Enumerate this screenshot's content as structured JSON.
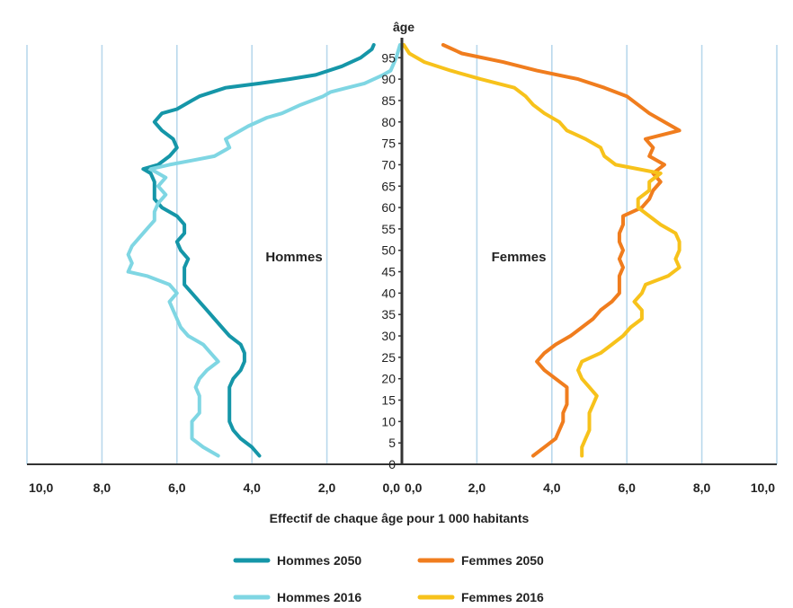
{
  "chart_data": {
    "type": "line",
    "layout": "population-pyramid",
    "title": "",
    "y_axis_title": "âge",
    "x_axis_title": "Effectif de chaque âge pour 1 000 habitants",
    "x_ticks_left": [
      "10,0",
      "8,0",
      "6,0",
      "4,0",
      "2,0",
      "0,0"
    ],
    "x_ticks_right": [
      "0,0",
      "2,0",
      "4,0",
      "6,0",
      "8,0",
      "10,0"
    ],
    "xlim": [
      0,
      10
    ],
    "ylim": [
      0,
      98
    ],
    "y_ticks": [
      0,
      5,
      10,
      15,
      20,
      25,
      30,
      35,
      40,
      45,
      50,
      55,
      60,
      65,
      70,
      75,
      80,
      85,
      90,
      95
    ],
    "grid": "vertical",
    "side_labels": {
      "left": "Hommes",
      "right": "Femmes"
    },
    "colors": {
      "hommes_2050": "#1596a8",
      "hommes_2016": "#7fd6e3",
      "femmes_2050": "#f07d1e",
      "femmes_2016": "#f7c21b",
      "grid": "#b9d8ec",
      "axis": "#333333"
    },
    "series": [
      {
        "name": "Hommes 2050",
        "side": "left",
        "color": "#1596a8",
        "points": [
          [
            3.8,
            2
          ],
          [
            4.0,
            4
          ],
          [
            4.3,
            6
          ],
          [
            4.5,
            8
          ],
          [
            4.6,
            10
          ],
          [
            4.6,
            12
          ],
          [
            4.6,
            14
          ],
          [
            4.6,
            16
          ],
          [
            4.6,
            18
          ],
          [
            4.5,
            20
          ],
          [
            4.3,
            22
          ],
          [
            4.2,
            24
          ],
          [
            4.2,
            26
          ],
          [
            4.3,
            28
          ],
          [
            4.6,
            30
          ],
          [
            4.8,
            32
          ],
          [
            5.0,
            34
          ],
          [
            5.2,
            36
          ],
          [
            5.4,
            38
          ],
          [
            5.6,
            40
          ],
          [
            5.8,
            42
          ],
          [
            5.8,
            44
          ],
          [
            5.8,
            46
          ],
          [
            5.7,
            48
          ],
          [
            5.9,
            50
          ],
          [
            6.0,
            52
          ],
          [
            5.8,
            54
          ],
          [
            5.8,
            56
          ],
          [
            6.0,
            58
          ],
          [
            6.4,
            60
          ],
          [
            6.6,
            62
          ],
          [
            6.6,
            64
          ],
          [
            6.6,
            66
          ],
          [
            6.7,
            68
          ],
          [
            6.9,
            69
          ],
          [
            6.5,
            70
          ],
          [
            6.2,
            72
          ],
          [
            6.0,
            74
          ],
          [
            6.1,
            76
          ],
          [
            6.4,
            78
          ],
          [
            6.6,
            80
          ],
          [
            6.4,
            82
          ],
          [
            6.0,
            83
          ],
          [
            5.6,
            85
          ],
          [
            5.4,
            86
          ],
          [
            4.7,
            88
          ],
          [
            3.8,
            89
          ],
          [
            3.0,
            90
          ],
          [
            2.3,
            91
          ],
          [
            1.6,
            93
          ],
          [
            1.1,
            95
          ],
          [
            0.8,
            97
          ],
          [
            0.75,
            98
          ]
        ]
      },
      {
        "name": "Hommes 2016",
        "side": "left",
        "color": "#7fd6e3",
        "points": [
          [
            4.9,
            2
          ],
          [
            5.3,
            4
          ],
          [
            5.6,
            6
          ],
          [
            5.6,
            8
          ],
          [
            5.6,
            10
          ],
          [
            5.4,
            12
          ],
          [
            5.4,
            14
          ],
          [
            5.4,
            16
          ],
          [
            5.5,
            18
          ],
          [
            5.4,
            20
          ],
          [
            5.2,
            22
          ],
          [
            4.9,
            24
          ],
          [
            5.1,
            26
          ],
          [
            5.3,
            28
          ],
          [
            5.7,
            30
          ],
          [
            5.9,
            32
          ],
          [
            6.0,
            34
          ],
          [
            6.1,
            36
          ],
          [
            6.2,
            38
          ],
          [
            6.0,
            40
          ],
          [
            6.2,
            42
          ],
          [
            6.8,
            44
          ],
          [
            7.3,
            45
          ],
          [
            7.2,
            47
          ],
          [
            7.3,
            49
          ],
          [
            7.2,
            51
          ],
          [
            7.0,
            53
          ],
          [
            6.8,
            55
          ],
          [
            6.6,
            57
          ],
          [
            6.6,
            59
          ],
          [
            6.5,
            61
          ],
          [
            6.3,
            63
          ],
          [
            6.5,
            65
          ],
          [
            6.3,
            67
          ],
          [
            6.7,
            69
          ],
          [
            6.2,
            70
          ],
          [
            5.6,
            71
          ],
          [
            5.0,
            72
          ],
          [
            4.6,
            74
          ],
          [
            4.7,
            76
          ],
          [
            4.1,
            79
          ],
          [
            3.6,
            81
          ],
          [
            3.2,
            82
          ],
          [
            2.7,
            84
          ],
          [
            2.1,
            86
          ],
          [
            1.9,
            87
          ],
          [
            1.0,
            89
          ],
          [
            0.5,
            91
          ],
          [
            0.3,
            92
          ],
          [
            0.15,
            95
          ],
          [
            0.05,
            98
          ]
        ]
      },
      {
        "name": "Femmes 2050",
        "side": "right",
        "color": "#f07d1e",
        "points": [
          [
            3.5,
            2
          ],
          [
            3.8,
            4
          ],
          [
            4.1,
            6
          ],
          [
            4.2,
            8
          ],
          [
            4.3,
            10
          ],
          [
            4.3,
            12
          ],
          [
            4.4,
            14
          ],
          [
            4.4,
            16
          ],
          [
            4.4,
            18
          ],
          [
            4.1,
            20
          ],
          [
            3.8,
            22
          ],
          [
            3.6,
            24
          ],
          [
            3.8,
            26
          ],
          [
            4.1,
            28
          ],
          [
            4.5,
            30
          ],
          [
            4.8,
            32
          ],
          [
            5.1,
            34
          ],
          [
            5.3,
            36
          ],
          [
            5.6,
            38
          ],
          [
            5.8,
            40
          ],
          [
            5.8,
            42
          ],
          [
            5.8,
            44
          ],
          [
            5.9,
            46
          ],
          [
            5.8,
            48
          ],
          [
            5.9,
            50
          ],
          [
            5.8,
            52
          ],
          [
            5.8,
            54
          ],
          [
            5.9,
            56
          ],
          [
            5.9,
            58
          ],
          [
            6.4,
            60
          ],
          [
            6.6,
            62
          ],
          [
            6.7,
            64
          ],
          [
            6.9,
            66
          ],
          [
            6.7,
            68
          ],
          [
            7.0,
            70
          ],
          [
            6.6,
            72
          ],
          [
            6.7,
            74
          ],
          [
            6.5,
            76
          ],
          [
            7.4,
            78
          ],
          [
            7.0,
            80
          ],
          [
            6.6,
            82
          ],
          [
            6.3,
            84
          ],
          [
            6.0,
            86
          ],
          [
            5.4,
            88
          ],
          [
            4.7,
            90
          ],
          [
            3.6,
            92
          ],
          [
            2.7,
            94
          ],
          [
            1.6,
            96
          ],
          [
            1.1,
            98
          ]
        ]
      },
      {
        "name": "Femmes 2016",
        "side": "right",
        "color": "#f7c21b",
        "points": [
          [
            4.8,
            2
          ],
          [
            4.8,
            4
          ],
          [
            4.9,
            6
          ],
          [
            5.0,
            8
          ],
          [
            5.0,
            10
          ],
          [
            5.0,
            12
          ],
          [
            5.1,
            14
          ],
          [
            5.2,
            16
          ],
          [
            5.0,
            18
          ],
          [
            4.8,
            20
          ],
          [
            4.7,
            22
          ],
          [
            4.8,
            24
          ],
          [
            5.3,
            26
          ],
          [
            5.6,
            28
          ],
          [
            5.9,
            30
          ],
          [
            6.1,
            32
          ],
          [
            6.4,
            34
          ],
          [
            6.4,
            36
          ],
          [
            6.2,
            38
          ],
          [
            6.4,
            40
          ],
          [
            6.5,
            42
          ],
          [
            7.1,
            44
          ],
          [
            7.4,
            46
          ],
          [
            7.3,
            48
          ],
          [
            7.4,
            50
          ],
          [
            7.4,
            52
          ],
          [
            7.3,
            54
          ],
          [
            6.9,
            56
          ],
          [
            6.6,
            58
          ],
          [
            6.3,
            60
          ],
          [
            6.3,
            62
          ],
          [
            6.6,
            64
          ],
          [
            6.6,
            66
          ],
          [
            6.9,
            68
          ],
          [
            5.7,
            70
          ],
          [
            5.4,
            72
          ],
          [
            5.3,
            74
          ],
          [
            4.9,
            76
          ],
          [
            4.4,
            78
          ],
          [
            4.2,
            80
          ],
          [
            3.8,
            82
          ],
          [
            3.5,
            84
          ],
          [
            3.3,
            86
          ],
          [
            3.0,
            88
          ],
          [
            2.1,
            90
          ],
          [
            1.3,
            92
          ],
          [
            0.6,
            94
          ],
          [
            0.2,
            96
          ],
          [
            0.05,
            98
          ]
        ]
      }
    ],
    "legend": [
      {
        "label": "Hommes 2050",
        "color": "#1596a8"
      },
      {
        "label": "Femmes 2050",
        "color": "#f07d1e"
      },
      {
        "label": "Hommes 2016",
        "color": "#7fd6e3"
      },
      {
        "label": "Femmes 2016",
        "color": "#f7c21b"
      }
    ]
  }
}
